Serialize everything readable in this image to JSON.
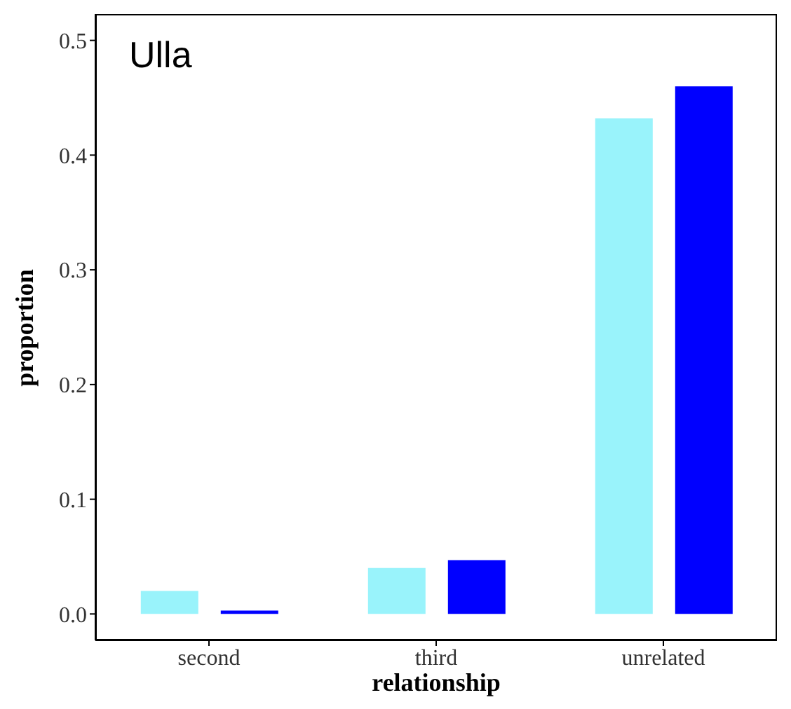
{
  "chart_data": {
    "type": "bar",
    "title": "Ulla",
    "xlabel": "relationship",
    "ylabel": "proportion",
    "categories": [
      "second",
      "third",
      "unrelated"
    ],
    "series": [
      {
        "color": "#99f3fb",
        "values": [
          0.02,
          0.04,
          0.432
        ]
      },
      {
        "color": "#0000ff",
        "values": [
          0.003,
          0.047,
          0.46
        ]
      }
    ],
    "ylim": [
      -0.023,
      0.523
    ],
    "yticks": [
      {
        "value": 0,
        "label": "0.0"
      },
      0.1,
      0.2,
      0.3,
      0.4,
      0.5
    ],
    "grid": false,
    "legend": false
  }
}
